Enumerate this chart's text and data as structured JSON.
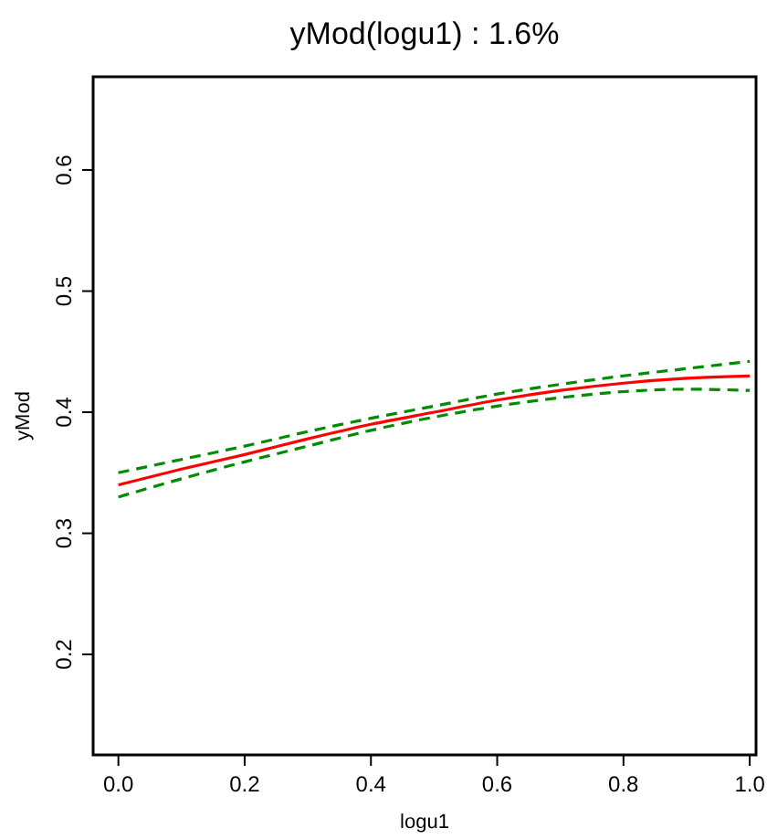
{
  "chart_data": {
    "type": "line",
    "title": "yMod(logu1) : 1.6%",
    "xlabel": "logu1",
    "ylabel": "yMod",
    "x": [
      0,
      0.1,
      0.2,
      0.3,
      0.4,
      0.5,
      0.6,
      0.7,
      0.8,
      0.9,
      1.0
    ],
    "series": [
      {
        "color": "#ff0000",
        "line_style": "solid",
        "values": [
          0.34,
          0.353,
          0.365,
          0.378,
          0.39,
          0.4,
          0.41,
          0.418,
          0.424,
          0.428,
          0.43
        ]
      },
      {
        "color": "#008b00",
        "line_style": "dashed",
        "values": [
          0.35,
          0.361,
          0.372,
          0.384,
          0.395,
          0.405,
          0.415,
          0.423,
          0.43,
          0.436,
          0.442
        ]
      },
      {
        "color": "#008b00",
        "line_style": "dashed",
        "values": [
          0.33,
          0.345,
          0.359,
          0.372,
          0.385,
          0.396,
          0.405,
          0.412,
          0.417,
          0.419,
          0.418
        ]
      }
    ],
    "xlim": [
      -0.04,
      1.01
    ],
    "ylim": [
      0.117,
      0.677
    ],
    "xticks": [
      {
        "value": 0,
        "label": "0.0"
      },
      0.2,
      0.4,
      0.6,
      0.8,
      {
        "value": 1,
        "label": "1.0"
      }
    ],
    "yticks": [
      0.2,
      0.3,
      0.4,
      0.5,
      0.6
    ],
    "grid": false,
    "marker": "none"
  }
}
